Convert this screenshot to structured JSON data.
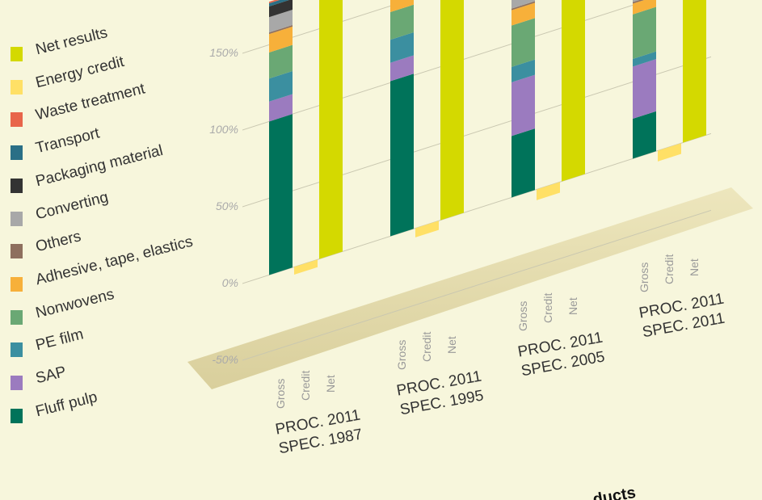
{
  "chart_data": {
    "type": "bar",
    "categories": [
      "PROC. 2011\nSPEC. 1987",
      "PROC. 2011\nSPEC. 1995",
      "PROC. 2011\nSPEC. 2005",
      "PROC. 2011\nSPEC. 2011"
    ],
    "bar_labels": [
      "Gross",
      "Credit",
      "Net"
    ],
    "series": [
      {
        "name": "Fluff pulp",
        "color": "#00735a",
        "bar": 0,
        "values": [
          100,
          101,
          40,
          26
        ]
      },
      {
        "name": "SAP",
        "color": "#9b7bbf",
        "bar": 0,
        "values": [
          13,
          12,
          35,
          34
        ]
      },
      {
        "name": "PE film",
        "color": "#3b8fa0",
        "bar": 0,
        "values": [
          15,
          15,
          10,
          5
        ]
      },
      {
        "name": "Nonwovens",
        "color": "#6aa874",
        "bar": 0,
        "values": [
          17,
          18,
          27,
          29
        ]
      },
      {
        "name": "Adhesive, tape, elastics",
        "color": "#f7b03a",
        "bar": 0,
        "values": [
          12,
          10,
          10,
          7
        ]
      },
      {
        "name": "Others",
        "color": "#8e6f5e",
        "bar": 0,
        "values": [
          1,
          1,
          1,
          1
        ]
      },
      {
        "name": "Converting",
        "color": "#a8a8a8",
        "bar": 0,
        "values": [
          10,
          8,
          8,
          5
        ]
      },
      {
        "name": "Packaging material",
        "color": "#333333",
        "bar": 0,
        "values": [
          7,
          6,
          4,
          3
        ]
      },
      {
        "name": "Transport",
        "color": "#2a6f86",
        "bar": 0,
        "values": [
          2,
          2,
          2,
          1
        ]
      },
      {
        "name": "Waste treatment",
        "color": "#e8654a",
        "bar": 0,
        "values": [
          1,
          1,
          1,
          1
        ]
      },
      {
        "name": "Energy credit",
        "color": "#ffe066",
        "bar": 1,
        "values": [
          -5,
          -6,
          -7,
          -7
        ]
      },
      {
        "name": "Net results",
        "color": "#d4d900",
        "bar": 2,
        "values": [
          173,
          168,
          131,
          105
        ]
      }
    ],
    "ylim": [
      -50,
      150
    ],
    "yticks": [
      {
        "value": -50,
        "label": "-50%"
      },
      {
        "value": 0,
        "label": "0%"
      },
      {
        "value": 50,
        "label": "50%"
      },
      {
        "value": 100,
        "label": "100%"
      },
      {
        "value": 150,
        "label": "150%"
      }
    ],
    "grid": true,
    "legend": "left",
    "footer": "ducts"
  }
}
